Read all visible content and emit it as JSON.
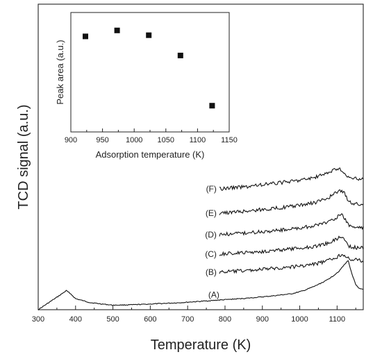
{
  "chart_data": [
    {
      "type": "line",
      "xlabel": "Temperature (K)",
      "ylabel": "TCD signal (a.u.)",
      "xlim": [
        300,
        1170
      ],
      "xticks": [
        "300",
        "400",
        "500",
        "600",
        "700",
        "800",
        "900",
        "1000",
        "1100"
      ],
      "y_ticks_shown": false,
      "grid": false,
      "series": [
        {
          "name": "(A)",
          "x": [
            300,
            320,
            340,
            360,
            375,
            385,
            400,
            440,
            500,
            560,
            620,
            680,
            740,
            800,
            860,
            920,
            980,
            1010,
            1040,
            1070,
            1090,
            1105,
            1115,
            1125,
            1130,
            1140,
            1150,
            1160,
            1170
          ],
          "y": [
            0.0,
            0.1,
            0.2,
            0.3,
            0.38,
            0.33,
            0.22,
            0.14,
            0.09,
            0.1,
            0.12,
            0.14,
            0.17,
            0.2,
            0.23,
            0.27,
            0.32,
            0.38,
            0.47,
            0.58,
            0.68,
            0.77,
            0.86,
            0.95,
            0.98,
            0.7,
            0.5,
            0.42,
            0.4
          ]
        },
        {
          "name": "(B)",
          "x": [
            785,
            850,
            900,
            950,
            1000,
            1040,
            1070,
            1090,
            1105,
            1115,
            1125,
            1135,
            1145,
            1155,
            1160,
            1170
          ],
          "y": [
            0.0,
            0.08,
            0.16,
            0.24,
            0.34,
            0.45,
            0.6,
            0.75,
            0.9,
            1.0,
            0.9,
            0.6,
            0.65,
            0.75,
            0.65,
            0.6
          ]
        },
        {
          "name": "(C)",
          "x": [
            785,
            850,
            900,
            950,
            1000,
            1040,
            1070,
            1090,
            1105,
            1112,
            1120,
            1130,
            1140,
            1150,
            1160,
            1170
          ],
          "y": [
            0.0,
            0.08,
            0.16,
            0.24,
            0.34,
            0.45,
            0.6,
            0.78,
            0.95,
            1.0,
            0.85,
            0.5,
            0.4,
            0.38,
            0.37,
            0.36
          ]
        },
        {
          "name": "(D)",
          "x": [
            785,
            850,
            900,
            950,
            1000,
            1040,
            1070,
            1090,
            1105,
            1112,
            1120,
            1130,
            1140,
            1150,
            1160,
            1170
          ],
          "y": [
            0.0,
            0.08,
            0.16,
            0.24,
            0.34,
            0.46,
            0.62,
            0.8,
            0.96,
            1.0,
            0.85,
            0.5,
            0.4,
            0.38,
            0.37,
            0.36
          ]
        },
        {
          "name": "(E)",
          "x": [
            785,
            850,
            900,
            950,
            1000,
            1040,
            1070,
            1090,
            1100,
            1110,
            1120,
            1130,
            1140,
            1150,
            1160,
            1170
          ],
          "y": [
            0.0,
            0.08,
            0.16,
            0.24,
            0.34,
            0.46,
            0.62,
            0.8,
            0.92,
            1.0,
            0.85,
            0.55,
            0.45,
            0.4,
            0.38,
            0.37
          ]
        },
        {
          "name": "(F)",
          "x": [
            785,
            850,
            900,
            950,
            1000,
            1040,
            1070,
            1090,
            1100,
            1110,
            1120,
            1130,
            1140,
            1150,
            1160,
            1170
          ],
          "y": [
            0.0,
            0.1,
            0.2,
            0.3,
            0.42,
            0.55,
            0.72,
            0.9,
            1.0,
            0.9,
            0.7,
            0.55,
            0.5,
            0.48,
            0.47,
            0.47
          ]
        }
      ]
    },
    {
      "type": "scatter",
      "xlabel": "Adsorption temperature (K)",
      "ylabel": "Peak area (a.u.)",
      "xlim": [
        900,
        1150
      ],
      "xticks": [
        "900",
        "950",
        "1000",
        "1050",
        "1100",
        "1150"
      ],
      "y_ticks_shown": false,
      "grid": false,
      "series": [
        {
          "x": [
            923,
            973,
            1023,
            1073,
            1123
          ],
          "y": [
            0.8,
            0.85,
            0.81,
            0.64,
            0.22
          ]
        }
      ]
    }
  ]
}
